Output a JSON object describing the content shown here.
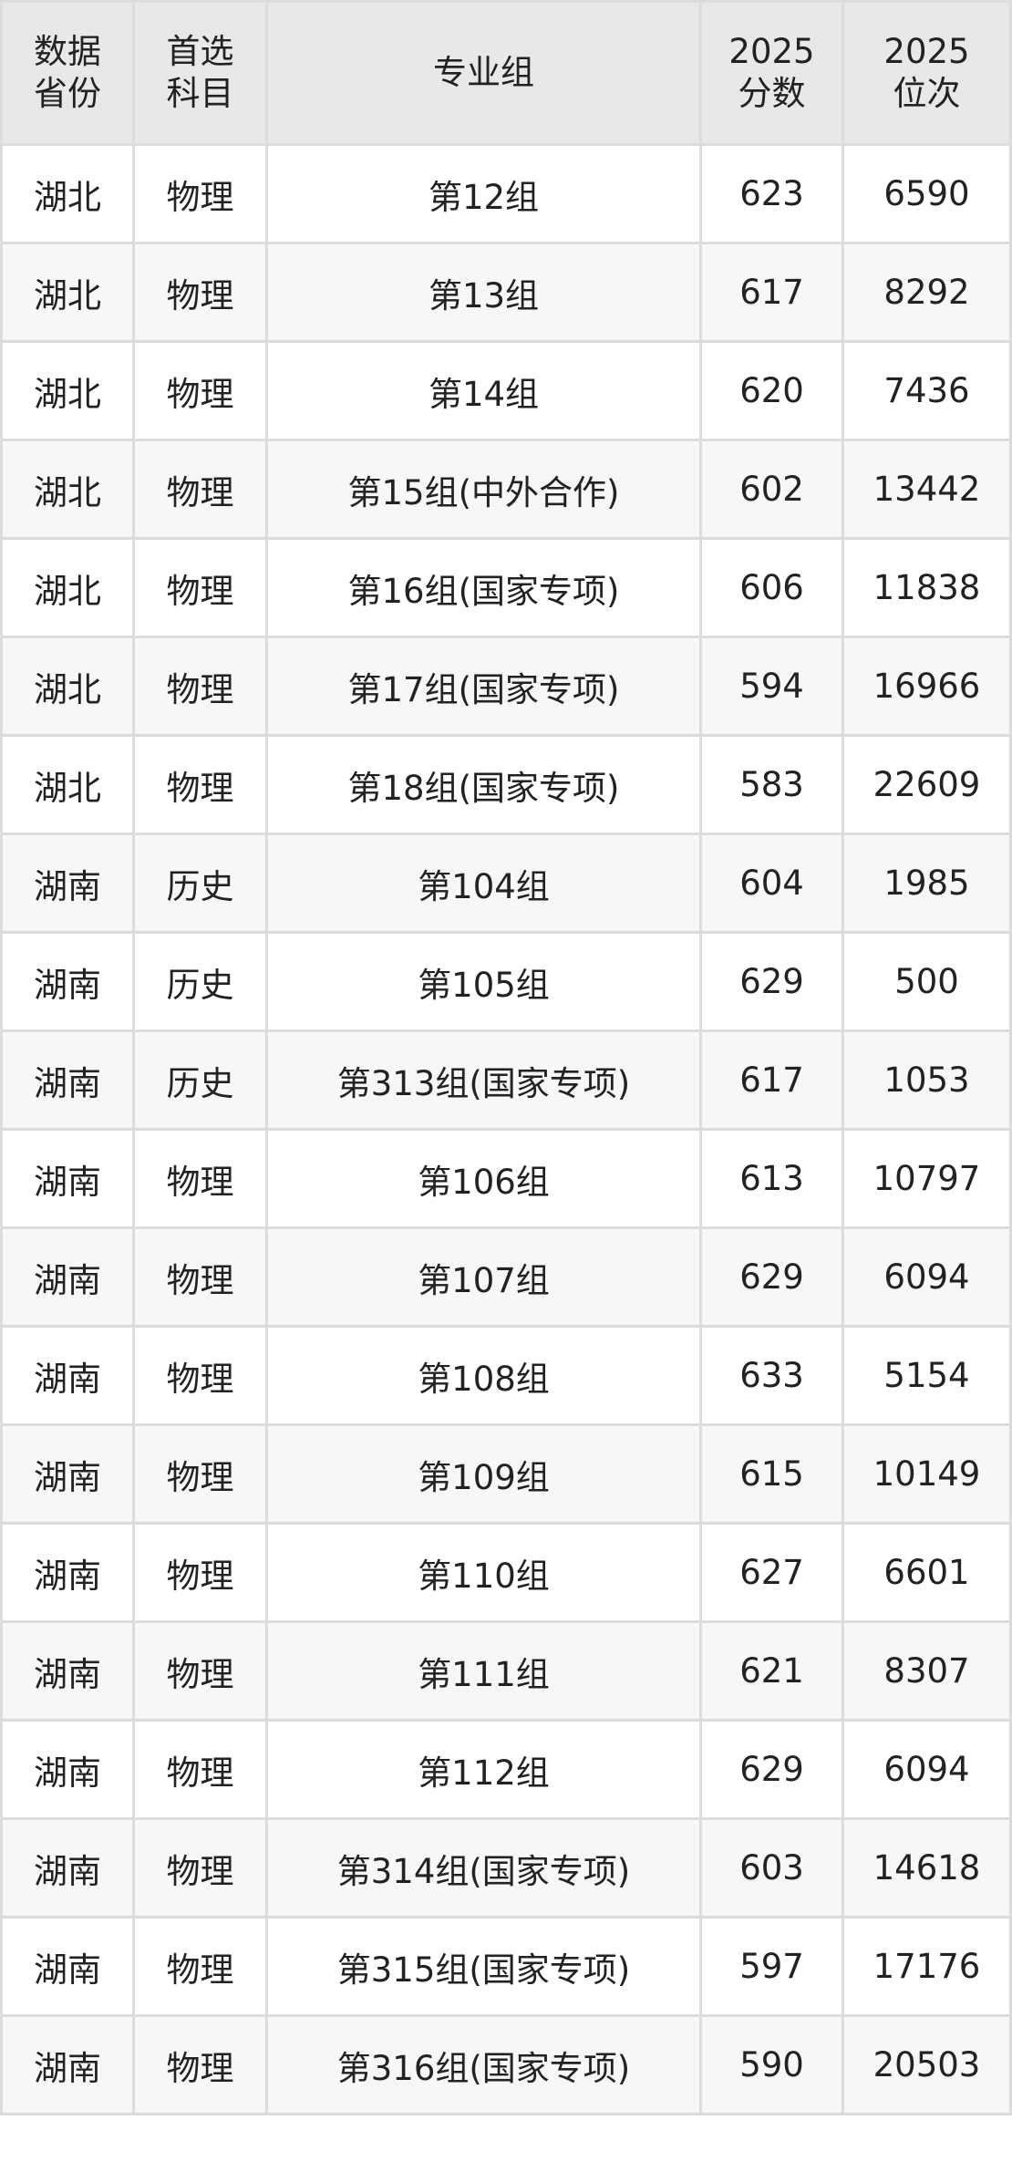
{
  "headers": [
    "数据\n省份",
    "首选\n科目",
    "专业组",
    "2025\n分数",
    "2025\n位次"
  ],
  "rows": [
    [
      "湖北",
      "物理",
      "第12组",
      "623",
      "6590"
    ],
    [
      "湖北",
      "物理",
      "第13组",
      "617",
      "8292"
    ],
    [
      "湖北",
      "物理",
      "第14组",
      "620",
      "7436"
    ],
    [
      "湖北",
      "物理",
      "第15组(中外合作)",
      "602",
      "13442"
    ],
    [
      "湖北",
      "物理",
      "第16组(国家专项)",
      "606",
      "11838"
    ],
    [
      "湖北",
      "物理",
      "第17组(国家专项)",
      "594",
      "16966"
    ],
    [
      "湖北",
      "物理",
      "第18组(国家专项)",
      "583",
      "22609"
    ],
    [
      "湖南",
      "历史",
      "第104组",
      "604",
      "1985"
    ],
    [
      "湖南",
      "历史",
      "第105组",
      "629",
      "500"
    ],
    [
      "湖南",
      "历史",
      "第313组(国家专项)",
      "617",
      "1053"
    ],
    [
      "湖南",
      "物理",
      "第106组",
      "613",
      "10797"
    ],
    [
      "湖南",
      "物理",
      "第107组",
      "629",
      "6094"
    ],
    [
      "湖南",
      "物理",
      "第108组",
      "633",
      "5154"
    ],
    [
      "湖南",
      "物理",
      "第109组",
      "615",
      "10149"
    ],
    [
      "湖南",
      "物理",
      "第110组",
      "627",
      "6601"
    ],
    [
      "湖南",
      "物理",
      "第111组",
      "621",
      "8307"
    ],
    [
      "湖南",
      "物理",
      "第112组",
      "629",
      "6094"
    ],
    [
      "湖南",
      "物理",
      "第314组(国家专项)",
      "603",
      "14618"
    ],
    [
      "湖南",
      "物理",
      "第315组(国家专项)",
      "597",
      "17176"
    ],
    [
      "湖南",
      "物理",
      "第316组(国家专项)",
      "590",
      "20503"
    ]
  ]
}
